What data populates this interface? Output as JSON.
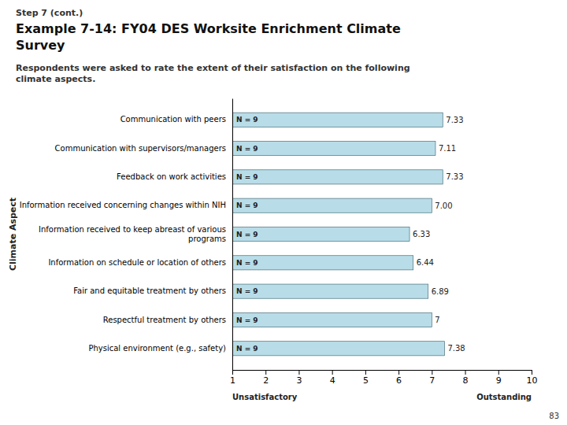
{
  "chart_data": {
    "type": "bar",
    "orientation": "horizontal",
    "header": "Step 7 (cont.)",
    "title": "Example 7-14: FY04 DES Worksite Enrichment Climate\nSurvey",
    "subtitle": "Respondents were asked to rate the extent of their satisfaction on the following\nclimate aspects.",
    "ylabel": "Climate Aspect",
    "xlabel_left": "Unsatisfactory",
    "xlabel_right": "Outstanding",
    "page_number": "83",
    "categories": [
      "Communication with peers",
      "Communication with supervisors/managers",
      "Feedback on work activities",
      "Information received concerning changes within NIH",
      "Information received to keep abreast of various\nprograms",
      "Information on schedule or location of others",
      "Fair and equitable treatment by others",
      "Respectful treatment by others",
      "Physical environment (e.g., safety)"
    ],
    "values": [
      7.33,
      7.11,
      7.33,
      7.0,
      6.33,
      6.44,
      6.89,
      7.0,
      7.38
    ],
    "value_labels": [
      "7.33",
      "7.11",
      "7.33",
      "7.00",
      "6.33",
      "6.44",
      "6.89",
      "7",
      "7.38"
    ],
    "n_labels": [
      "N = 9",
      "N = 9",
      "N = 9",
      "N = 9",
      "N = 9",
      "N = 9",
      "N = 9",
      "N = 9",
      "N = 9"
    ],
    "data_labels": true,
    "color": "#b8dde8",
    "xlim": [
      1,
      10
    ],
    "xticks": [
      1,
      2,
      3,
      4,
      5,
      6,
      7,
      8,
      9,
      10
    ]
  }
}
